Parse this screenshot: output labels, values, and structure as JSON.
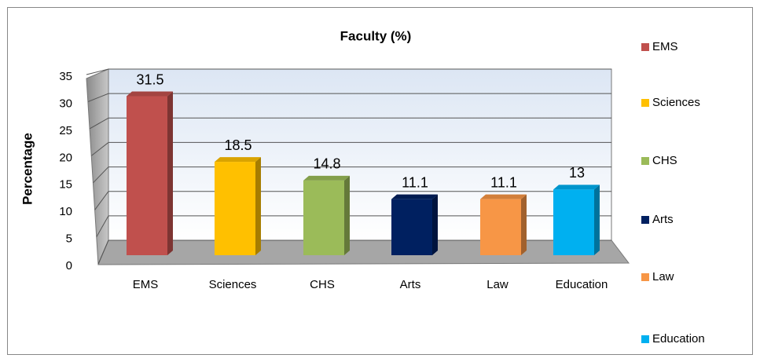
{
  "chart_data": {
    "type": "bar",
    "title": "Faculty (%)",
    "y_label": "Percentage",
    "categories": [
      "EMS",
      "Sciences",
      "CHS",
      "Arts",
      "Law",
      "Education"
    ],
    "values": [
      31.5,
      18.5,
      14.8,
      11.1,
      11.1,
      13
    ],
    "colors": [
      "#c0504d",
      "#ffc000",
      "#9bbb59",
      "#002060",
      "#f79646",
      "#00b0f0"
    ],
    "ylim": [
      0,
      35
    ],
    "yticks": [
      0,
      5,
      10,
      15,
      20,
      25,
      30,
      35
    ],
    "grid": true,
    "legend": "right"
  }
}
